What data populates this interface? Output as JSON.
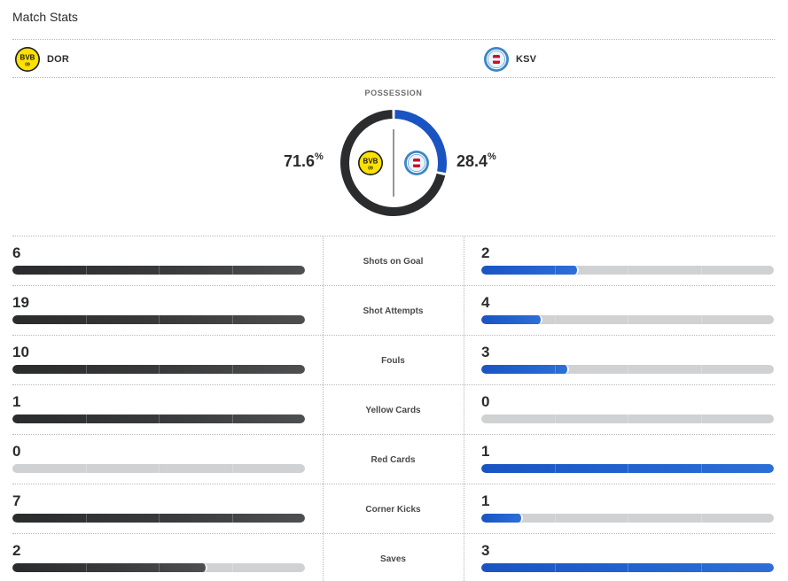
{
  "header": {
    "title": "Match Stats"
  },
  "teams": {
    "home": {
      "abbr": "DOR",
      "logo": "bvb-crest-icon",
      "logo_text": "BVB",
      "logo_sub": "09",
      "color": "#2b2c2d",
      "logo_bg": "#fde100"
    },
    "away": {
      "abbr": "KSV",
      "logo": "holstein-kiel-crest-icon",
      "color": "#1a54c2",
      "logo_bg": "#5aa0d8"
    }
  },
  "possession": {
    "label": "POSSESSION",
    "home_value": "71.6",
    "away_value": "28.4",
    "unit": "%",
    "home_fraction": 0.716,
    "away_fraction": 0.284
  },
  "stats": [
    {
      "label": "Shots on Goal",
      "home": "6",
      "away": "2",
      "home_fraction": 1.0,
      "away_fraction": 0.333
    },
    {
      "label": "Shot Attempts",
      "home": "19",
      "away": "4",
      "home_fraction": 1.0,
      "away_fraction": 0.21
    },
    {
      "label": "Fouls",
      "home": "10",
      "away": "3",
      "home_fraction": 1.0,
      "away_fraction": 0.3
    },
    {
      "label": "Yellow Cards",
      "home": "1",
      "away": "0",
      "home_fraction": 1.0,
      "away_fraction": 0.0
    },
    {
      "label": "Red Cards",
      "home": "0",
      "away": "1",
      "home_fraction": 0.0,
      "away_fraction": 1.0
    },
    {
      "label": "Corner Kicks",
      "home": "7",
      "away": "1",
      "home_fraction": 1.0,
      "away_fraction": 0.143
    },
    {
      "label": "Saves",
      "home": "2",
      "away": "3",
      "home_fraction": 0.667,
      "away_fraction": 1.0
    }
  ]
}
